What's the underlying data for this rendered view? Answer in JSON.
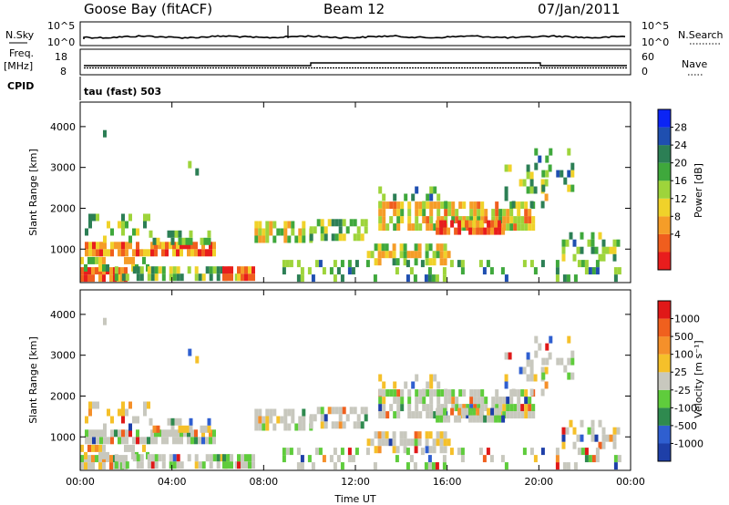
{
  "header": {
    "station": "Goose Bay (fitACF)",
    "beam": "Beam 12",
    "date": "07/Jan/2011"
  },
  "panels": {
    "nsky": {
      "left_label": "N.Sky",
      "left_ticks": [
        "10^5",
        "10^0"
      ],
      "right_label": "N.Search",
      "right_ticks": [
        "10^5",
        "10^0"
      ]
    },
    "freq": {
      "left_label_1": "Freq.",
      "left_label_2": "[MHz]",
      "left_ticks": [
        "18",
        "8"
      ],
      "right_label": "Nave",
      "right_ticks": [
        "60",
        "0"
      ]
    },
    "cpid": {
      "label": "CPID",
      "value": "tau (fast) 503"
    }
  },
  "colors": {
    "power_scale": [
      "#0b24f5",
      "#1f4fb0",
      "#2c7f55",
      "#3fa83c",
      "#9ed43b",
      "#f0d22a",
      "#f59d28",
      "#f05e1e",
      "#e81d1d"
    ],
    "velocity_scale": [
      "#1e3fa8",
      "#2f5fd0",
      "#2f8a4f",
      "#5fcc3c",
      "#c8c8be",
      "#f5c02a",
      "#f5902a",
      "#f0601e",
      "#e01818"
    ]
  },
  "chart_data": [
    {
      "type": "heatmap",
      "title": "Power",
      "xlabel": "",
      "ylabel": "Slant Range [km]",
      "x_ticks": [
        "00:00",
        "04:00",
        "08:00",
        "12:00",
        "16:00",
        "20:00",
        "00:00"
      ],
      "x_range_hours": [
        0,
        24
      ],
      "y_ticks": [
        1000,
        2000,
        3000,
        4000
      ],
      "ylim": [
        180,
        4600
      ],
      "colorbar_label": "Power [dB]",
      "colorbar_ticks": [
        "28",
        "24",
        "20",
        "16",
        "12",
        "8",
        "4"
      ],
      "colorbar_range": [
        0,
        32
      ]
    },
    {
      "type": "heatmap",
      "title": "Velocity",
      "xlabel": "Time UT",
      "ylabel": "Slant Range [km]",
      "x_ticks": [
        "00:00",
        "04:00",
        "08:00",
        "12:00",
        "16:00",
        "20:00",
        "00:00"
      ],
      "x_range_hours": [
        0,
        24
      ],
      "y_ticks": [
        1000,
        2000,
        3000,
        4000
      ],
      "ylim": [
        180,
        4600
      ],
      "colorbar_label": "Velocity [m s⁻¹]",
      "colorbar_ticks": [
        "1000",
        "500",
        "100",
        "25",
        "-25",
        "-100",
        "-500",
        "-1000"
      ]
    }
  ]
}
